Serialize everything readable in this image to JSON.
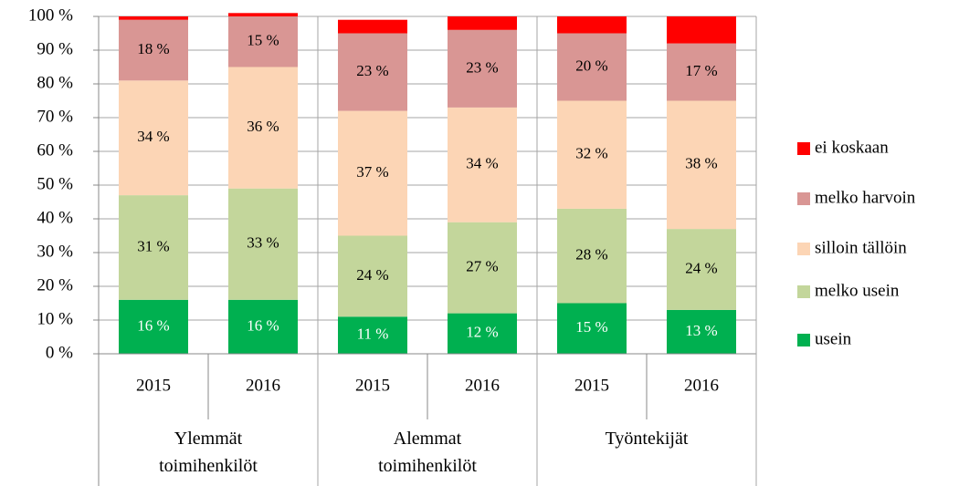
{
  "chart_data": {
    "type": "stacked_bar",
    "categories": [
      "2015",
      "2016",
      "2015",
      "2016",
      "2015",
      "2016"
    ],
    "groups": [
      "Ylemmät toimihenkilöt",
      "Alemmat toimihenkilöt",
      "Työntekijät"
    ],
    "series": [
      {
        "name": "usein",
        "color": "#00b050",
        "values": [
          16,
          16,
          11,
          12,
          15,
          13
        ],
        "value_labels": [
          "16 %",
          "16 %",
          "11 %",
          "12 %",
          "15 %",
          "13 %"
        ]
      },
      {
        "name": "melko usein",
        "color": "#c3d69b",
        "values": [
          31,
          33,
          24,
          27,
          28,
          24
        ],
        "value_labels": [
          "31 %",
          "33 %",
          "24 %",
          "27 %",
          "28 %",
          "24 %"
        ]
      },
      {
        "name": "silloin tällöin",
        "color": "#fcd5b5",
        "values": [
          34,
          36,
          37,
          34,
          32,
          38
        ],
        "value_labels": [
          "34 %",
          "36 %",
          "37 %",
          "34 %",
          "32 %",
          "38 %"
        ]
      },
      {
        "name": "melko harvoin",
        "color": "#d99694",
        "values": [
          18,
          15,
          23,
          23,
          20,
          17
        ],
        "value_labels": [
          "18 %",
          "15 %",
          "23 %",
          "23 %",
          "20 %",
          "17 %"
        ]
      },
      {
        "name": "ei koskaan",
        "color": "#ff0000",
        "values": [
          1,
          1,
          4,
          4,
          5,
          8
        ]
      }
    ],
    "ylim": [
      0,
      100
    ],
    "yticks": [
      {
        "value": 0,
        "label": "0 %"
      },
      {
        "value": 10,
        "label": "10 %"
      },
      {
        "value": 20,
        "label": "20 %"
      },
      {
        "value": 30,
        "label": "30 %"
      },
      {
        "value": 40,
        "label": "40 %"
      },
      {
        "value": 50,
        "label": "50 %"
      },
      {
        "value": 60,
        "label": "60 %"
      },
      {
        "value": 70,
        "label": "70 %"
      },
      {
        "value": 80,
        "label": "80 %"
      },
      {
        "value": 90,
        "label": "90 %"
      },
      {
        "value": 100,
        "label": "100 %"
      }
    ],
    "grid": true,
    "legend": "right"
  }
}
